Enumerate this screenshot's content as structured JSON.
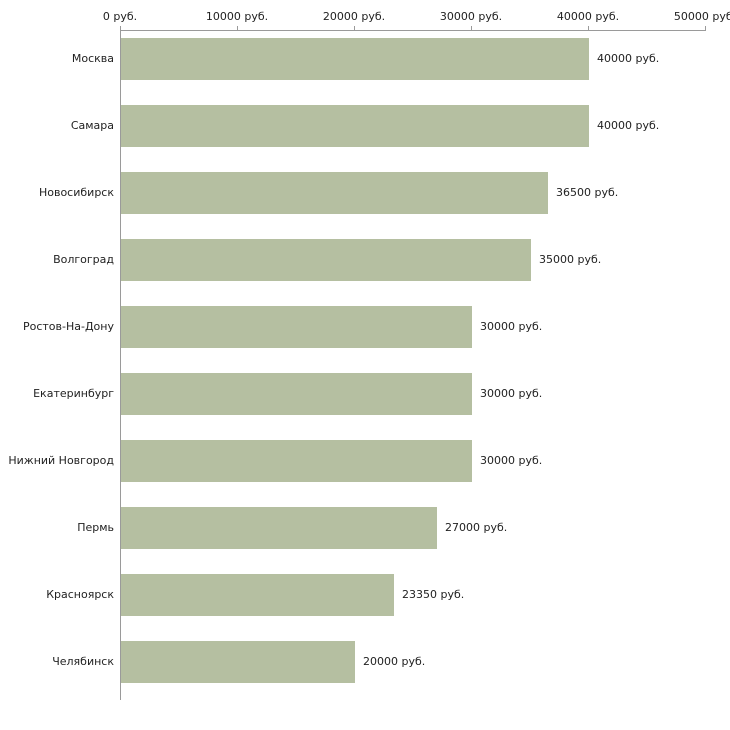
{
  "chart_data": {
    "type": "bar",
    "orientation": "horizontal",
    "title": "",
    "xlabel": "",
    "ylabel": "",
    "xlim": [
      0,
      50000
    ],
    "grid": false,
    "legend": false,
    "bar_color": "#b5bfa1",
    "axis_color": "#9a9a9a",
    "text_color": "#222222",
    "x_ticks": [
      "0 руб.",
      "10000 руб.",
      "20000 руб.",
      "30000 руб.",
      "40000 руб.",
      "50000 руб."
    ],
    "x_tick_values": [
      0,
      10000,
      20000,
      30000,
      40000,
      50000
    ],
    "categories": [
      "Москва",
      "Самара",
      "Новосибирск",
      "Волгоград",
      "Ростов-На-Дону",
      "Екатеринбург",
      "Нижний Новгород",
      "Пермь",
      "Красноярск",
      "Челябинск"
    ],
    "values": [
      40000,
      40000,
      36500,
      35000,
      30000,
      30000,
      30000,
      27000,
      23350,
      20000
    ],
    "value_labels": [
      "40000 руб.",
      "40000 руб.",
      "36500 руб.",
      "35000 руб.",
      "30000 руб.",
      "30000 руб.",
      "30000 руб.",
      "27000 руб.",
      "23350 руб.",
      "20000 руб."
    ]
  }
}
